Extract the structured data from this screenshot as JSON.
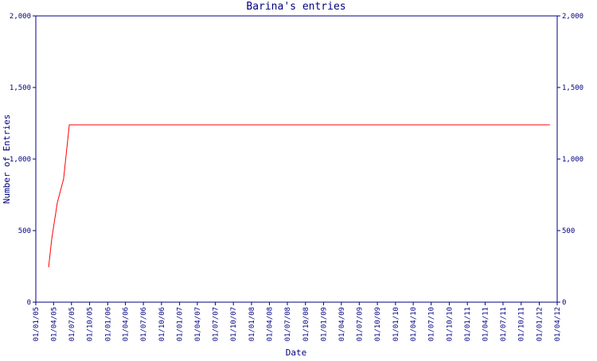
{
  "chart_data": {
    "type": "line",
    "title": "Barina's entries",
    "xlabel": "Date",
    "ylabel": "Number of Entries",
    "xlim": [
      "2005-01-01",
      "2012-04-01"
    ],
    "xticks": [
      {
        "value": "2005-01-01",
        "label": "01/01/05"
      },
      {
        "value": "2005-04-01",
        "label": "01/04/05"
      },
      {
        "value": "2005-07-01",
        "label": "01/07/05"
      },
      {
        "value": "2005-10-01",
        "label": "01/10/05"
      },
      {
        "value": "2006-01-01",
        "label": "01/01/06"
      },
      {
        "value": "2006-04-01",
        "label": "01/04/06"
      },
      {
        "value": "2006-07-01",
        "label": "01/07/06"
      },
      {
        "value": "2006-10-01",
        "label": "01/10/06"
      },
      {
        "value": "2007-01-01",
        "label": "01/01/07"
      },
      {
        "value": "2007-04-01",
        "label": "01/04/07"
      },
      {
        "value": "2007-07-01",
        "label": "01/07/07"
      },
      {
        "value": "2007-10-01",
        "label": "01/10/07"
      },
      {
        "value": "2008-01-01",
        "label": "01/01/08"
      },
      {
        "value": "2008-04-01",
        "label": "01/04/08"
      },
      {
        "value": "2008-07-01",
        "label": "01/07/08"
      },
      {
        "value": "2008-10-01",
        "label": "01/10/08"
      },
      {
        "value": "2009-01-01",
        "label": "01/01/09"
      },
      {
        "value": "2009-04-01",
        "label": "01/04/09"
      },
      {
        "value": "2009-07-01",
        "label": "01/07/09"
      },
      {
        "value": "2009-10-01",
        "label": "01/10/09"
      },
      {
        "value": "2010-01-01",
        "label": "01/01/10"
      },
      {
        "value": "2010-04-01",
        "label": "01/04/10"
      },
      {
        "value": "2010-07-01",
        "label": "01/07/10"
      },
      {
        "value": "2010-10-01",
        "label": "01/10/10"
      },
      {
        "value": "2011-01-01",
        "label": "01/01/11"
      },
      {
        "value": "2011-04-01",
        "label": "01/04/11"
      },
      {
        "value": "2011-07-01",
        "label": "01/07/11"
      },
      {
        "value": "2011-10-01",
        "label": "01/10/11"
      },
      {
        "value": "2012-01-01",
        "label": "01/01/12"
      },
      {
        "value": "2012-04-01",
        "label": "01/04/12"
      }
    ],
    "ylim": [
      0,
      2000
    ],
    "yticks": [
      0,
      500,
      {
        "value": 1000,
        "label": "1,000"
      },
      {
        "value": 1500,
        "label": "1,500"
      },
      {
        "value": 2000,
        "label": "2,000"
      }
    ],
    "x": [
      "2005-03-07",
      "2005-03-23",
      "2005-04-20",
      "2005-05-22",
      "2005-06-20",
      "2012-02-24"
    ],
    "series": [
      {
        "color": "#ff0000",
        "values": [
          244,
          444,
          694,
          861,
          1239,
          1239
        ]
      }
    ],
    "axis_color": "#000080"
  }
}
